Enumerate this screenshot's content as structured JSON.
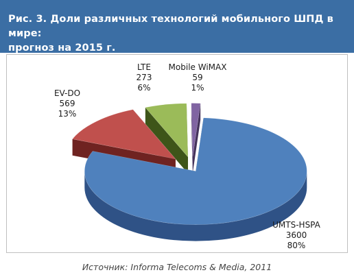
{
  "figure": {
    "title": "Рис. 3. Доли различных технологий мобильного ШПД в мире: прогноз на 2015 г.",
    "title_line1": "Рис. 3. Доли различных технологий мобильного ШПД в мире:",
    "title_line2": "прогноз на 2015 г.",
    "source": "Источник: Informa Telecoms & Media, 2011",
    "header_color": "#3b6ea4"
  },
  "chart_data": {
    "type": "pie",
    "title": "Рис. 3. Доли различных технологий мобильного ШПД в мире: прогноз на 2015 г.",
    "slices": [
      {
        "label": "UMTS-HSPA",
        "value": 3600,
        "percent": "80%",
        "color": "#4f81bd",
        "side_color": "#2f5286"
      },
      {
        "label": "EV-DO",
        "value": 569,
        "percent": "13%",
        "color": "#c0504d",
        "side_color": "#6f2321"
      },
      {
        "label": "LTE",
        "value": 273,
        "percent": "6%",
        "color": "#9bbb59",
        "side_color": "#3e5519"
      },
      {
        "label": "Mobile WiMAX",
        "value": 59,
        "percent": "1%",
        "color": "#8064a2",
        "side_color": "#45335c"
      }
    ],
    "legend": "none",
    "three_d": true
  }
}
